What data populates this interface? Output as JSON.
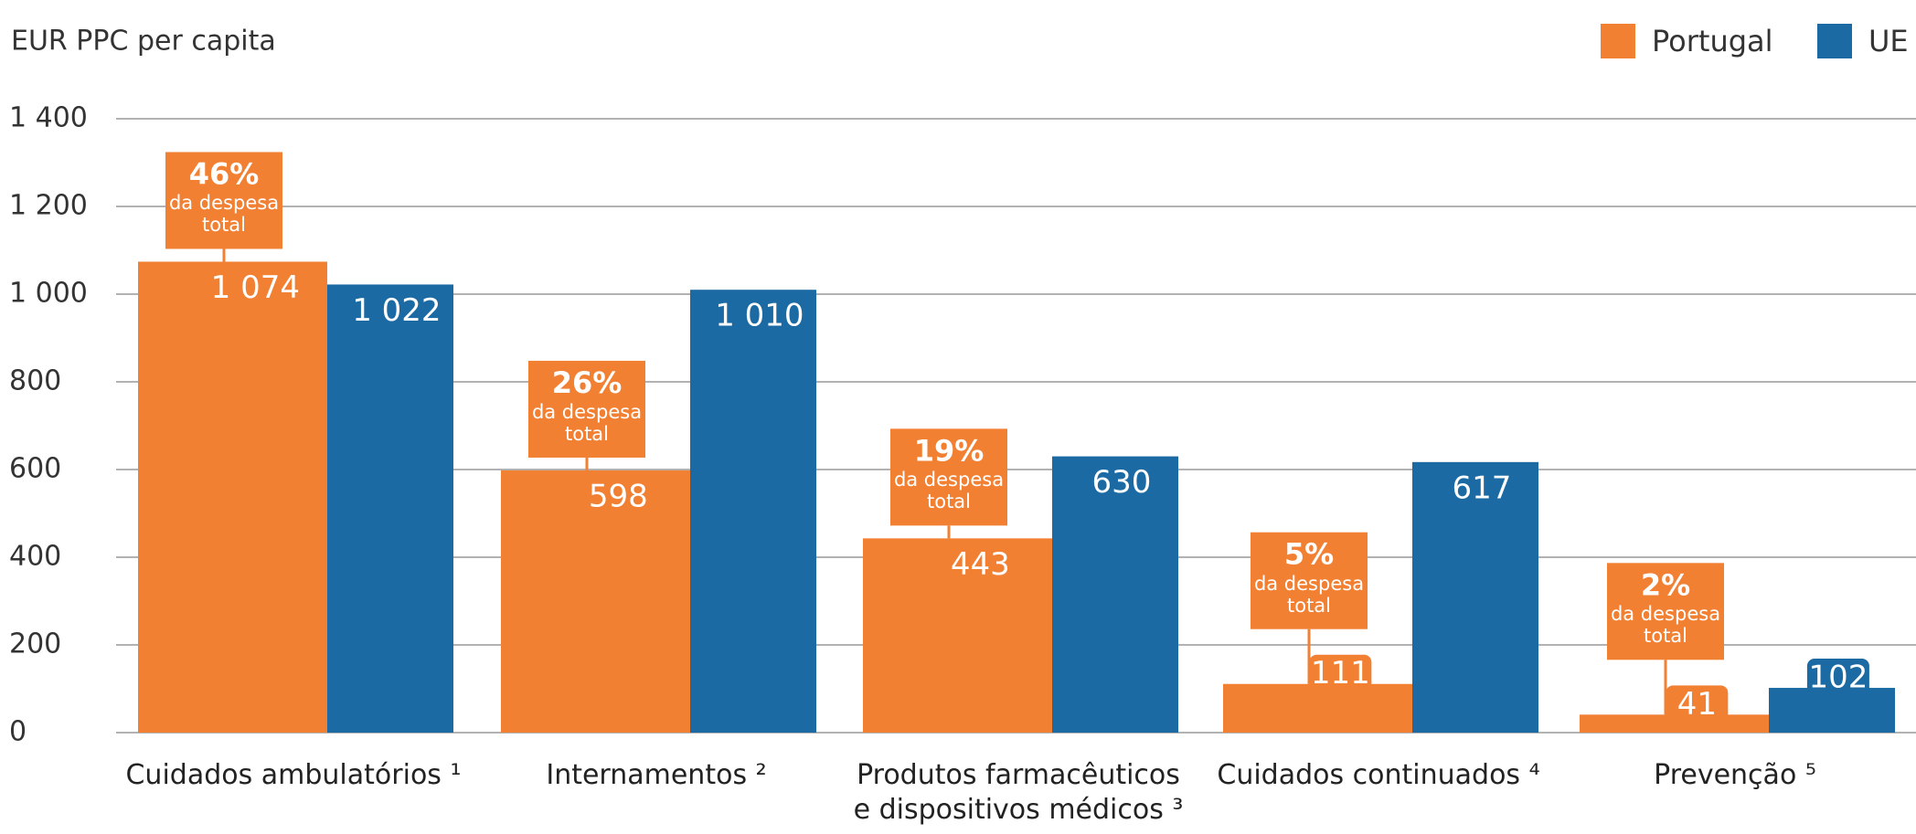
{
  "chart_data": {
    "type": "bar",
    "y_label": "EUR PPC per capita",
    "categories": [
      "Cuidados ambulatórios ¹",
      "Internamentos ²",
      "Produtos farmacêuticos e dispositivos médicos ³",
      "Cuidados continuados ⁴",
      "Prevenção ⁵"
    ],
    "series": [
      {
        "name": "Portugal",
        "color": "#f28033",
        "values": [
          1074,
          598,
          443,
          111,
          41
        ],
        "value_labels": [
          "1 074",
          "598",
          "443",
          "111",
          "41"
        ]
      },
      {
        "name": "UE",
        "color": "#1b6aa3",
        "values": [
          1022,
          1010,
          630,
          617,
          102
        ],
        "value_labels": [
          "1 022",
          "1 010",
          "630",
          "617",
          "102"
        ]
      }
    ],
    "shares": [
      {
        "value": 46,
        "label": "46%"
      },
      {
        "value": 26,
        "label": "26%"
      },
      {
        "value": 19,
        "label": "19%"
      },
      {
        "value": 5,
        "label": "5%"
      },
      {
        "value": 2,
        "label": "2%"
      }
    ],
    "share_note": "da despesa total",
    "ylim": [
      0,
      1400
    ],
    "yticks": [
      0,
      200,
      400,
      600,
      800,
      {
        "value": 1000,
        "label": "1 000"
      },
      {
        "value": 1200,
        "label": "1 200"
      },
      {
        "value": 1400,
        "label": "1 400"
      }
    ],
    "grid": true
  }
}
